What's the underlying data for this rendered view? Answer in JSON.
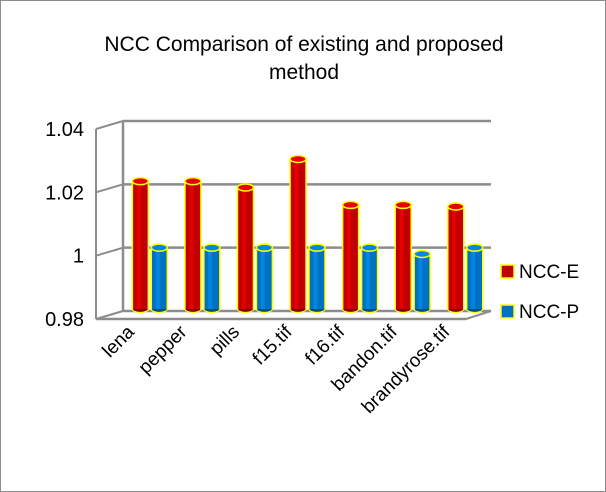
{
  "chart_data": {
    "type": "bar",
    "title": "NCC Comparison of existing and proposed method",
    "title_lines": [
      "NCC Comparison of existing and proposed",
      "method"
    ],
    "categories": [
      "lena",
      "pepper",
      "pills",
      "f15.tif",
      "f16.tif",
      "bandon.tif",
      "brandyrose.tif"
    ],
    "series": [
      {
        "name": "NCC-E",
        "color": "#c00000",
        "values": [
          1.021,
          1.021,
          1.019,
          1.028,
          1.0135,
          1.0135,
          1.013
        ]
      },
      {
        "name": "NCC-P",
        "color": "#0070c0",
        "values": [
          1.0,
          1.0,
          1.0,
          1.0,
          1.0,
          0.998,
          1.0
        ]
      }
    ],
    "ylim": [
      0.98,
      1.04
    ],
    "yticks": [
      "0.98",
      "1",
      "1.02",
      "1.04"
    ],
    "ytick_values": [
      0.98,
      1.0,
      1.02,
      1.04
    ],
    "grid": true,
    "legend_position": "right",
    "bar_outline_color": "#ffff00",
    "xlabel": "",
    "ylabel": ""
  }
}
